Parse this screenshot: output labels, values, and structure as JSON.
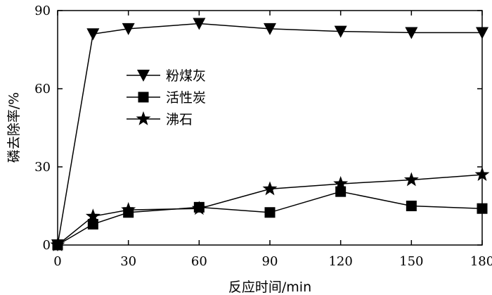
{
  "chart_data": {
    "type": "line",
    "title": "",
    "xlabel": "反应时间/min",
    "ylabel": "磷去除率/%",
    "xlim": [
      0,
      180
    ],
    "ylim": [
      0,
      90
    ],
    "x_ticks": [
      0,
      30,
      60,
      90,
      120,
      150,
      180
    ],
    "y_ticks": [
      0,
      30,
      60,
      90
    ],
    "grid": false,
    "legend_position": "upper-left",
    "series": [
      {
        "name": "粉煤灰",
        "marker": "triangle-down",
        "color": "#000000",
        "x": [
          0,
          15,
          30,
          60,
          90,
          120,
          150,
          180
        ],
        "y": [
          0,
          81,
          83,
          85,
          83,
          82,
          81.5,
          81.5
        ]
      },
      {
        "name": "活性炭",
        "marker": "square",
        "color": "#000000",
        "x": [
          0,
          15,
          30,
          60,
          90,
          120,
          150,
          180
        ],
        "y": [
          0,
          8,
          12.5,
          14.5,
          12.5,
          20.5,
          15,
          14
        ]
      },
      {
        "name": "沸石",
        "marker": "star",
        "color": "#000000",
        "x": [
          0,
          15,
          30,
          60,
          90,
          120,
          150,
          180
        ],
        "y": [
          0,
          11,
          13.5,
          14,
          21.5,
          23.5,
          25,
          27
        ]
      }
    ]
  }
}
